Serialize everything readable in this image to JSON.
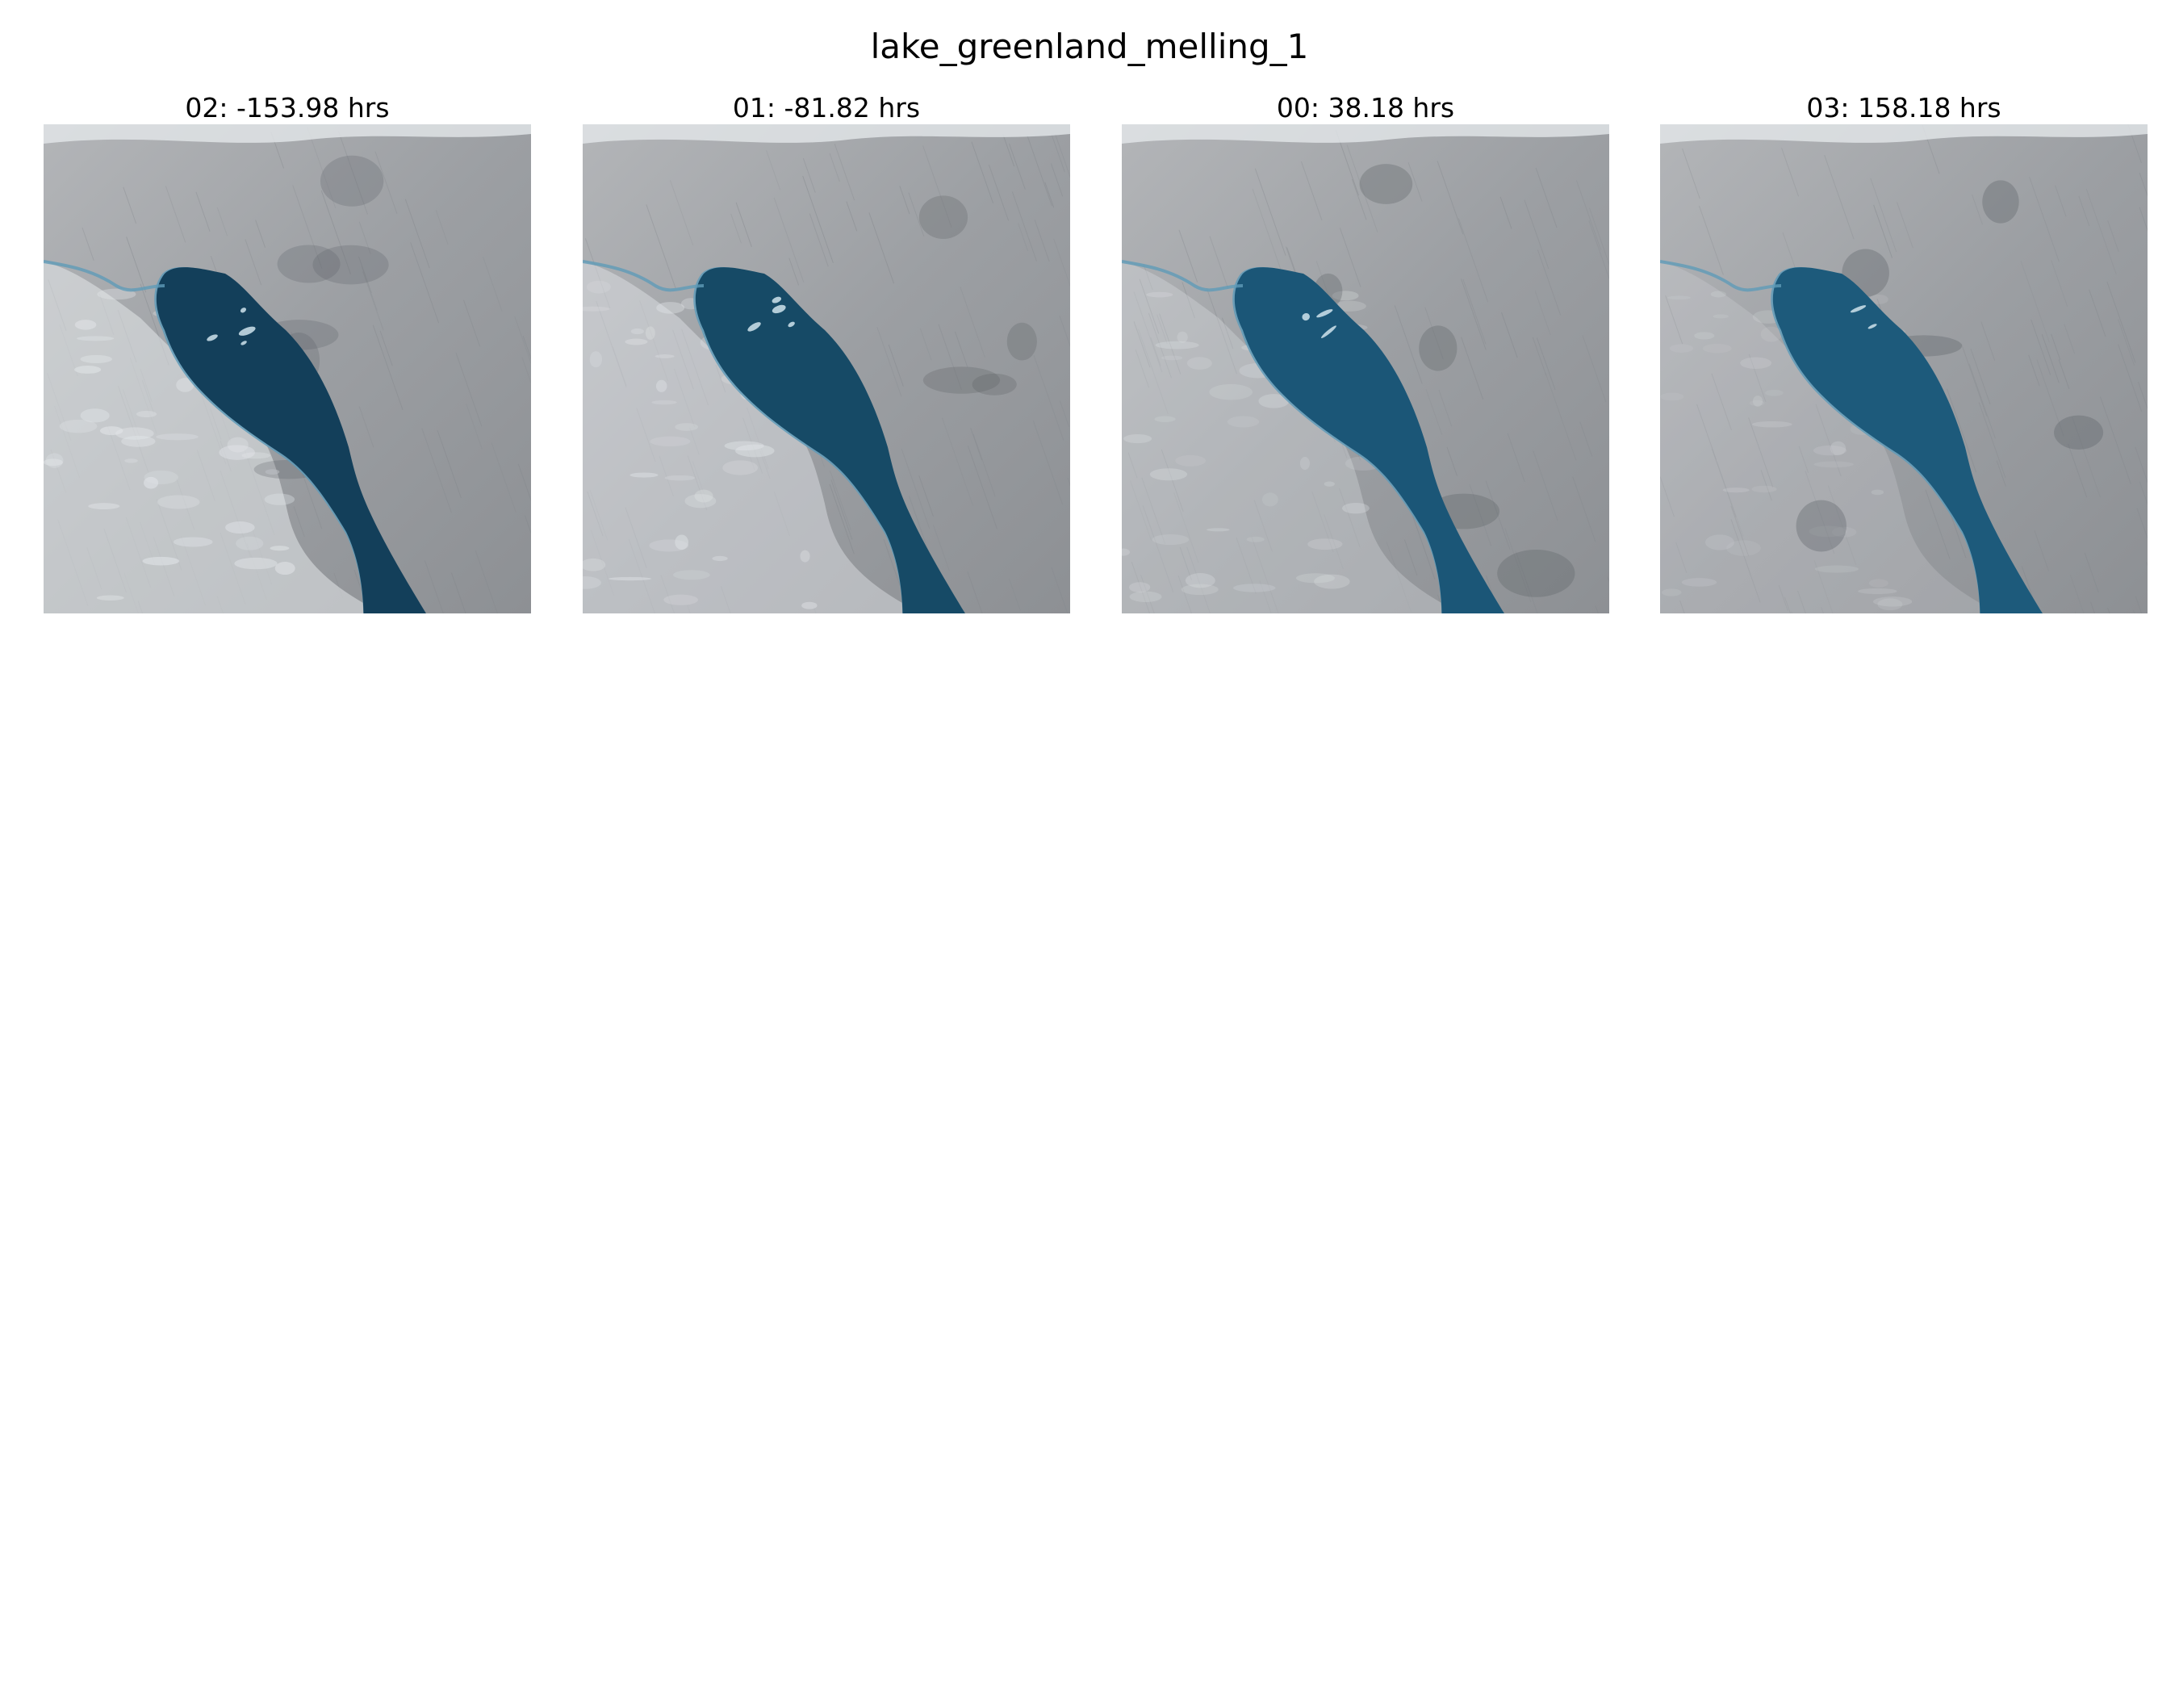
{
  "figure": {
    "title": "lake_greenland_melling_1"
  },
  "panels": [
    {
      "label": "02: -153.98 hrs",
      "lake_color": "#133f5a",
      "snow_level": 0.55
    },
    {
      "label": "01: -81.82 hrs",
      "lake_color": "#164a66",
      "snow_level": 0.45
    },
    {
      "label": "00: 38.18 hrs",
      "lake_color": "#1b5677",
      "snow_level": 0.3
    },
    {
      "label": "03: 158.18 hrs",
      "lake_color": "#1d5a7b",
      "snow_level": 0.2
    }
  ],
  "colors": {
    "ice": "#9c9fa3",
    "ice_dark": "#7f8388",
    "snow": "#e4e7ea",
    "lake_edge": "#5f9bb8"
  }
}
